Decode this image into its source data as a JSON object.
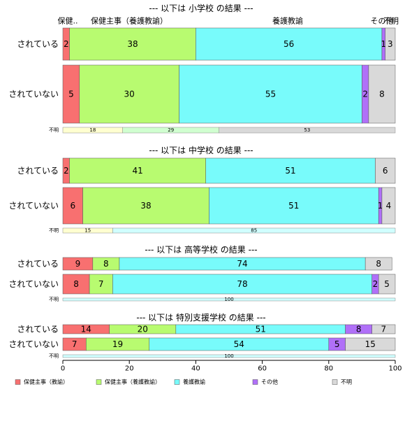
{
  "chart_data": {
    "type": "bar",
    "orientation": "horizontal",
    "stacked": true,
    "percent": true,
    "xlim": [
      0,
      100
    ],
    "x_ticks": [
      0,
      20,
      40,
      60,
      80,
      100
    ],
    "header_labels": [
      "保健..",
      "保健主事（養護教諭）",
      "養護教諭",
      "その他",
      "不明"
    ],
    "legend": [
      {
        "name": "保健主事（教諭）",
        "color": "#F87070"
      },
      {
        "name": "保健主事（養護教諭）",
        "color": "#B8FB70"
      },
      {
        "name": "養護教諭",
        "color": "#78FBFB"
      },
      {
        "name": "その他",
        "color": "#B070F8"
      },
      {
        "name": "不明",
        "color": "#D9D9D9"
      }
    ],
    "legend_position": "bottom",
    "sections": [
      {
        "title": "--- 以下は 小学校 の結果 ---",
        "rows": [
          {
            "label": "されている",
            "values": [
              2,
              38,
              56,
              1,
              3
            ],
            "labels": [
              "2",
              "38",
              "56",
              "1",
              "3"
            ]
          },
          {
            "label": "されていない",
            "values": [
              5,
              30,
              55,
              2,
              8
            ],
            "labels": [
              "5",
              "30",
              "55",
              "2",
              "8"
            ]
          }
        ],
        "subbar": {
          "label": "不明",
          "values": [
            18,
            29,
            53
          ],
          "colors": [
            "#FFFFD0",
            "#D0FFD0",
            "#D9D9D9"
          ]
        }
      },
      {
        "title": "--- 以下は 中学校 の結果 ---",
        "rows": [
          {
            "label": "されている",
            "values": [
              2,
              41,
              51,
              0,
              6
            ],
            "labels": [
              "2",
              "41",
              "51",
              "",
              "6"
            ]
          },
          {
            "label": "されていない",
            "values": [
              6,
              38,
              51,
              1,
              4
            ],
            "labels": [
              "6",
              "38",
              "51",
              "1",
              "4"
            ]
          }
        ],
        "subbar": {
          "label": "不明",
          "values": [
            15,
            85
          ],
          "colors": [
            "#FFFFD0",
            "#D0FFFF"
          ]
        }
      },
      {
        "title": "--- 以下は 高等学校 の結果 ---",
        "rows": [
          {
            "label": "されている",
            "values": [
              9,
              8,
              74,
              0,
              8
            ],
            "labels": [
              "9",
              "8",
              "74",
              "",
              "8"
            ]
          },
          {
            "label": "されていない",
            "values": [
              8,
              7,
              78,
              2,
              5
            ],
            "labels": [
              "8",
              "7",
              "78",
              "2",
              "5"
            ]
          }
        ],
        "subbar": {
          "label": "不明",
          "values": [
            100
          ],
          "colors": [
            "#D0FFFF"
          ]
        }
      },
      {
        "title": "--- 以下は 特別支援学校 の結果 ---",
        "rows": [
          {
            "label": "されている",
            "values": [
              14,
              20,
              51,
              8,
              7
            ],
            "labels": [
              "14",
              "20",
              "51",
              "8",
              "7"
            ]
          },
          {
            "label": "されていない",
            "values": [
              7,
              19,
              54,
              5,
              15
            ],
            "labels": [
              "7",
              "19",
              "54",
              "5",
              "15"
            ]
          }
        ],
        "subbar": {
          "label": "不明",
          "values": [
            100
          ],
          "colors": [
            "#D0FFFF"
          ]
        }
      }
    ]
  }
}
